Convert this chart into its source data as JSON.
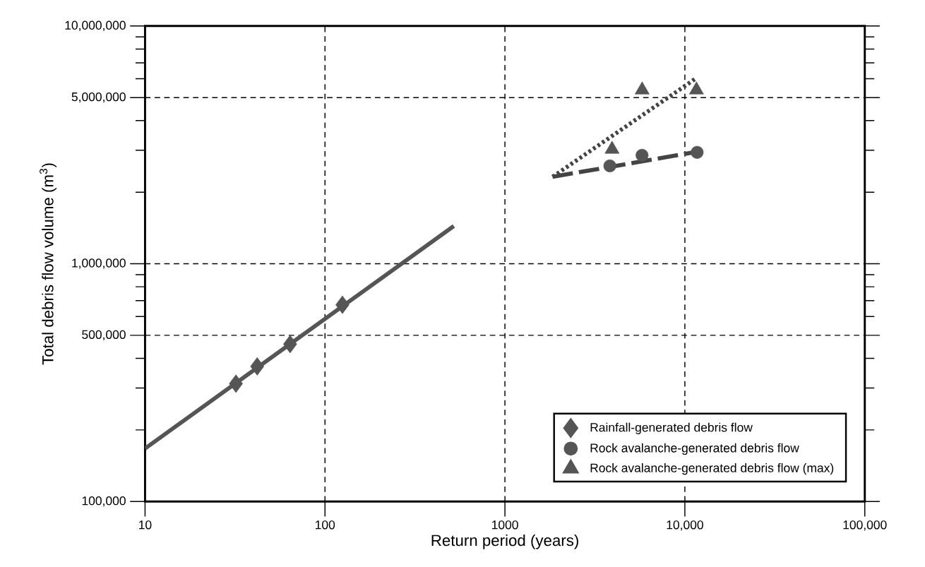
{
  "chart_data": {
    "type": "scatter",
    "xlabel": "Return period (years)",
    "ylabel": "Total debris flow volume (m$^{3}$)",
    "log": "xy",
    "grid": true,
    "legend": "bottom right",
    "xlim": [
      10,
      100000
    ],
    "ylim": [
      100000,
      10000000
    ],
    "xticks": [
      10,
      100,
      1000,
      {
        "value": 10000,
        "label": "10,000"
      },
      {
        "value": 100000,
        "label": "100,000"
      }
    ],
    "yticks": [
      {
        "value": 100000,
        "label": "100,000"
      },
      {
        "value": 200000,
        "label": null
      },
      {
        "value": 300000,
        "label": null
      },
      {
        "value": 400000,
        "label": null
      },
      {
        "value": 500000,
        "label": "500,000"
      },
      {
        "value": 600000,
        "label": null
      },
      {
        "value": 700000,
        "label": null
      },
      {
        "value": 800000,
        "label": null
      },
      {
        "value": 900000,
        "label": null
      },
      {
        "value": 1000000,
        "label": "1,000,000"
      },
      {
        "value": 2000000,
        "label": null
      },
      {
        "value": 3000000,
        "label": null
      },
      {
        "value": 4000000,
        "label": null
      },
      {
        "value": 5000000,
        "label": "5,000,000"
      },
      {
        "value": 6000000,
        "label": null
      },
      {
        "value": 7000000,
        "label": null
      },
      {
        "value": 8000000,
        "label": null
      },
      {
        "value": 9000000,
        "label": null
      },
      {
        "value": 10000000,
        "label": "10,000,000"
      }
    ],
    "series": [
      {
        "name": "Rainfall-generated debris flow",
        "type": "scatter",
        "marker": "diamond",
        "color": "#555555",
        "x": [
          32,
          42,
          64,
          125
        ],
        "values": [
          313000,
          370000,
          459000,
          672000
        ]
      },
      {
        "name": "Rock avalanche-generated debris flow",
        "type": "scatter",
        "marker": "circle",
        "color": "#555555",
        "x": [
          3830,
          5780,
          11700
        ],
        "values": [
          2580000,
          2860000,
          2940000
        ]
      },
      {
        "name": "Rock avalanche-generated debris flow (max)",
        "type": "scatter",
        "marker": "triangle",
        "color": "#555555",
        "x": [
          3940,
          5790,
          11600
        ],
        "values": [
          3030000,
          5380000,
          5380000
        ]
      },
      {
        "type": "line",
        "line_style": "solid",
        "color": "#555555",
        "x": [
          10,
          520
        ],
        "values": [
          167000,
          1440000
        ]
      },
      {
        "type": "line",
        "line_style": "dashed",
        "color": "#444444",
        "x": [
          1840,
          12400
        ],
        "values": [
          2320000,
          2980000
        ]
      },
      {
        "type": "line",
        "line_style": "dotted",
        "color": "#444444",
        "x": [
          1840,
          11600
        ],
        "values": [
          2320000,
          6040000
        ]
      }
    ]
  }
}
